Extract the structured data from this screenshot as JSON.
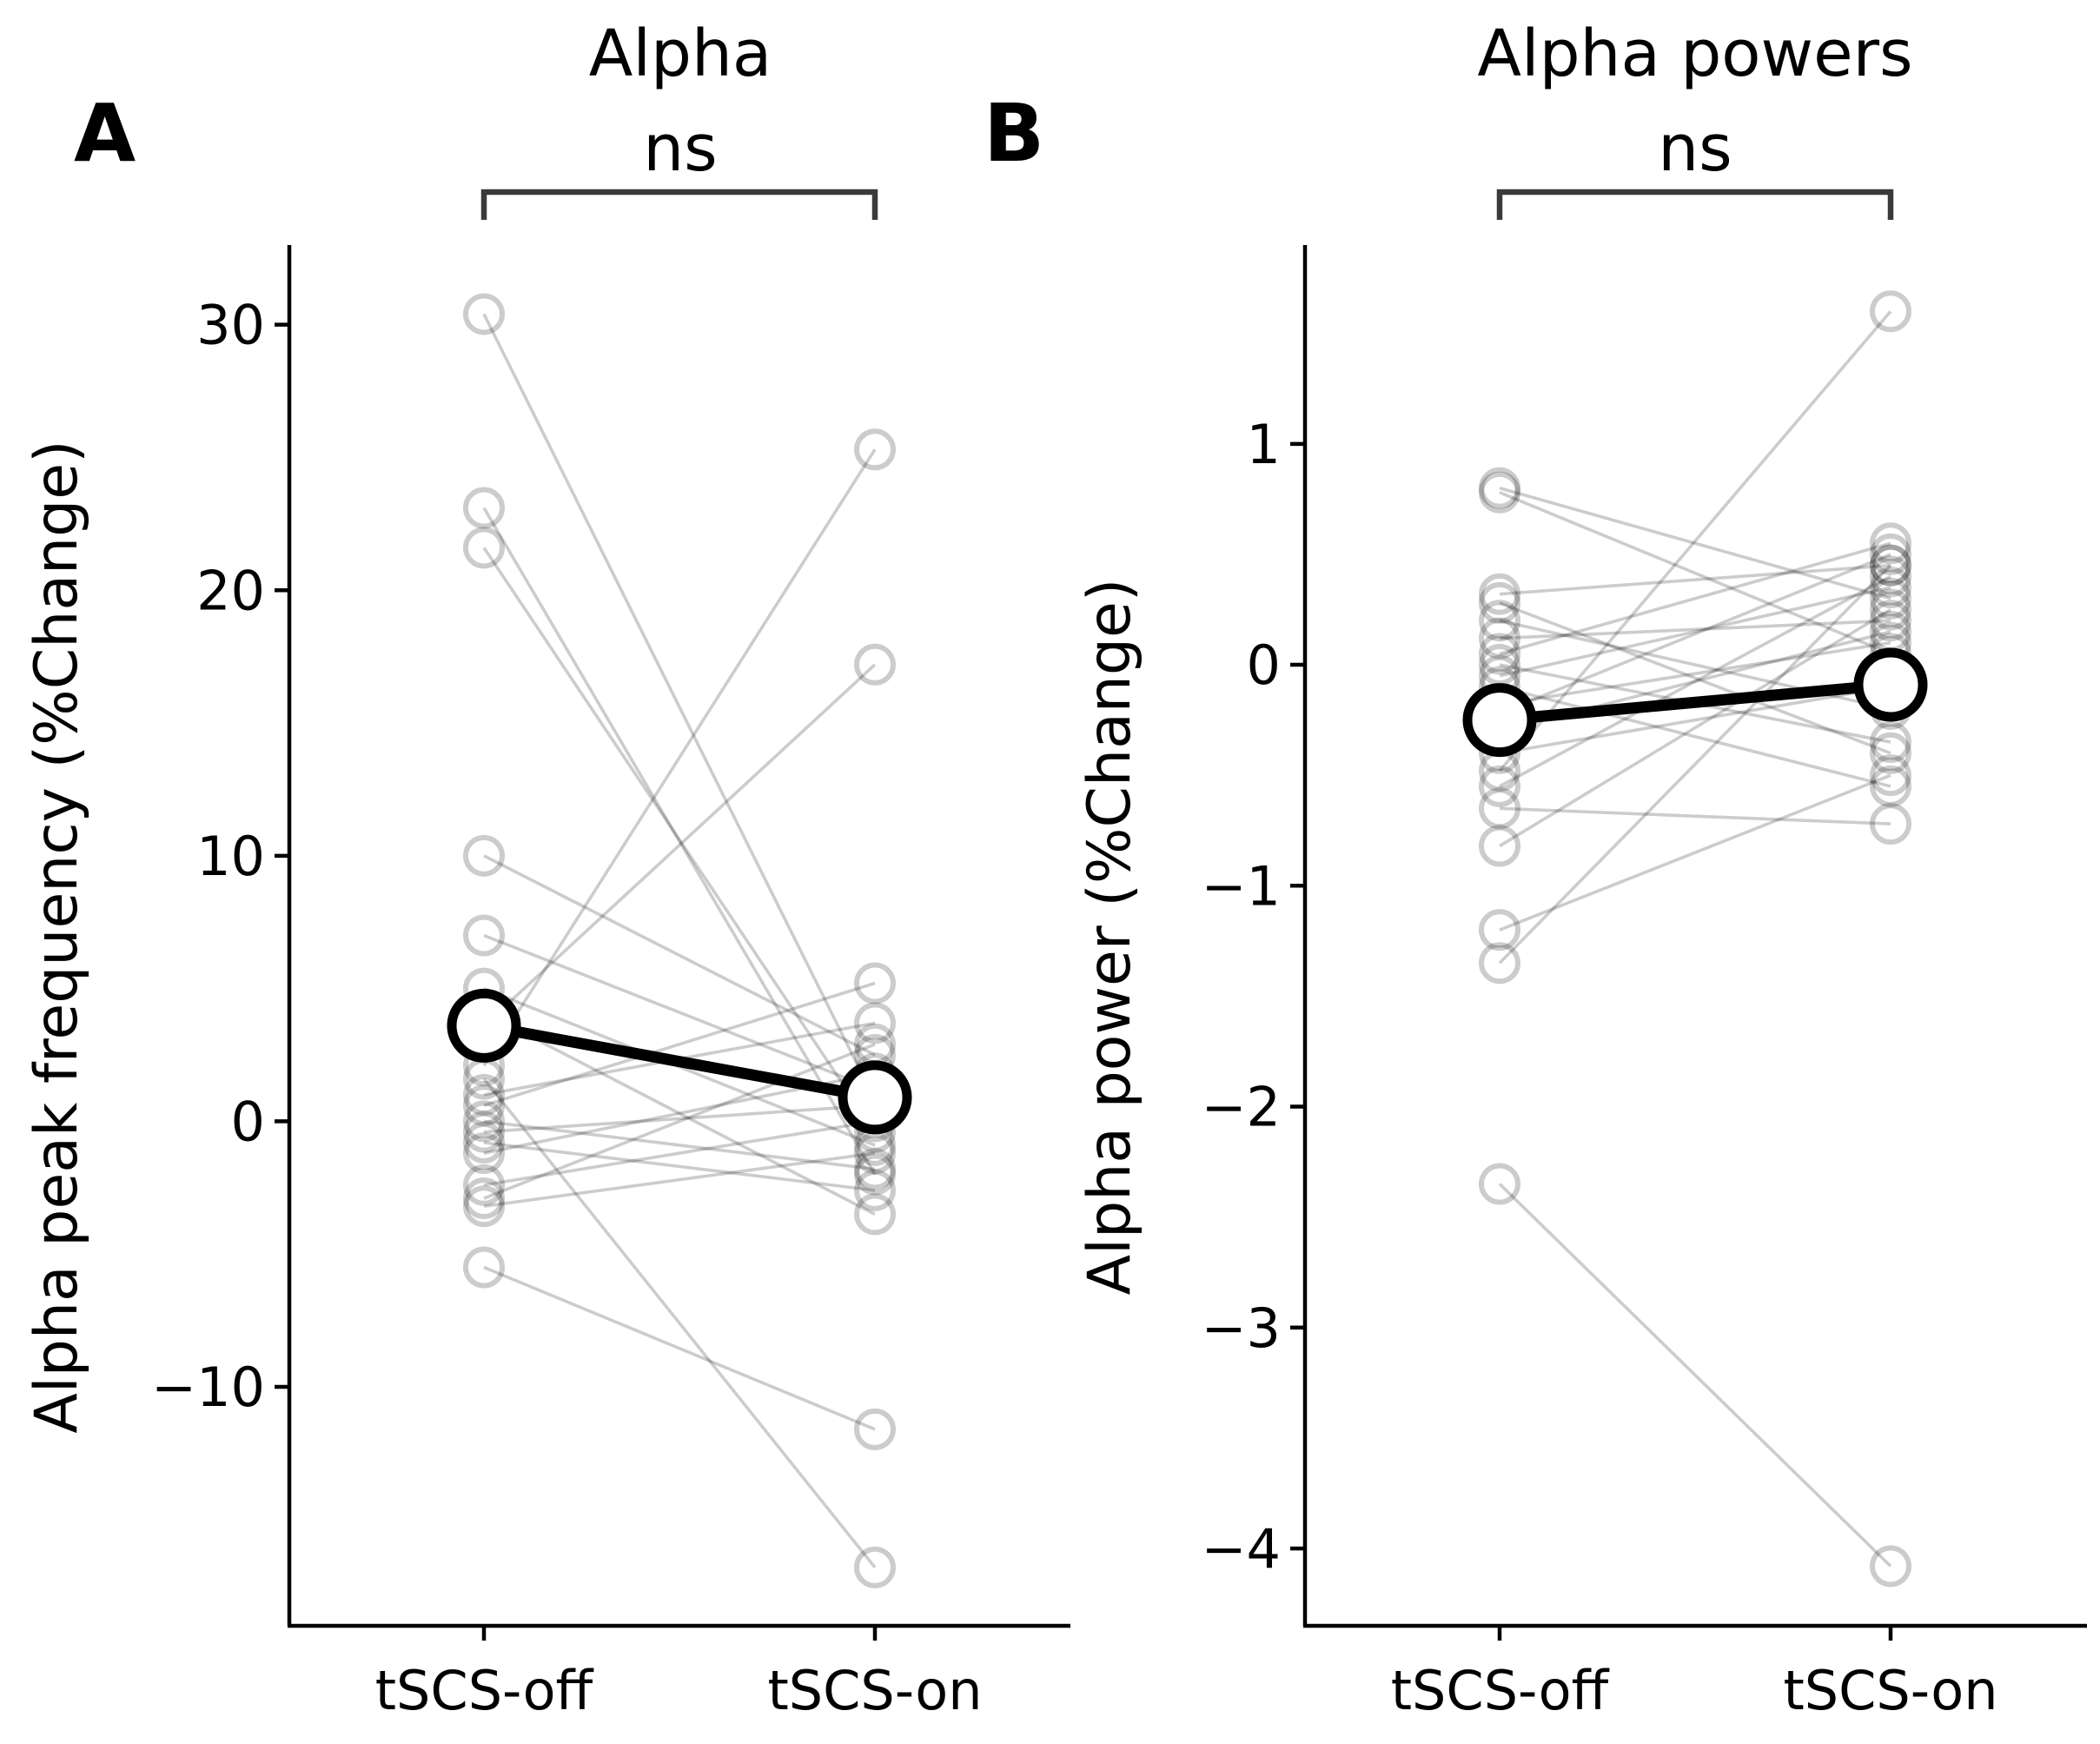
{
  "chart_data": [
    {
      "type": "paired-scatter",
      "panel_label": "A",
      "title": "Alpha",
      "significance": "ns",
      "ylabel": "Alpha peak frequency (%Change)",
      "xlabel": "",
      "categories": [
        "tSCS-off",
        "tSCS-on"
      ],
      "ylim": [
        -19,
        33
      ],
      "yticks": [
        30,
        20,
        10,
        0,
        -10
      ],
      "ytick_labels": [
        "30",
        "20",
        "10",
        "0",
        "−10"
      ],
      "grid": false,
      "pairs": [
        [
          30.4,
          0.8
        ],
        [
          23.1,
          -2.0
        ],
        [
          21.6,
          -0.4
        ],
        [
          10.0,
          2.5
        ],
        [
          7.0,
          1.2
        ],
        [
          5.0,
          -0.9
        ],
        [
          4.1,
          -3.5
        ],
        [
          3.6,
          17.2
        ],
        [
          2.1,
          25.3
        ],
        [
          1.6,
          -16.8
        ],
        [
          1.0,
          3.7
        ],
        [
          0.6,
          5.2
        ],
        [
          0.0,
          -1.8
        ],
        [
          -0.4,
          0.6
        ],
        [
          -0.8,
          -2.6
        ],
        [
          -1.2,
          1.8
        ],
        [
          -2.4,
          0.0
        ],
        [
          -2.9,
          2.9
        ],
        [
          -3.2,
          -1.2
        ],
        [
          -5.5,
          -11.6
        ]
      ],
      "mean": [
        3.6,
        0.9
      ]
    },
    {
      "type": "paired-scatter",
      "panel_label": "B",
      "title": "Alpha powers",
      "significance": "ns",
      "ylabel": "Alpha power (%Change)",
      "xlabel": "",
      "categories": [
        "tSCS-off",
        "tSCS-on"
      ],
      "ylim": [
        -4.35,
        1.9
      ],
      "yticks": [
        1,
        0,
        -1,
        -2,
        -3,
        -4
      ],
      "ytick_labels": [
        "1",
        "0",
        "−1",
        "−2",
        "−3",
        "−4"
      ],
      "grid": false,
      "pairs": [
        [
          0.8,
          0.3
        ],
        [
          0.78,
          0.05
        ],
        [
          0.32,
          0.45
        ],
        [
          0.28,
          -0.4
        ],
        [
          0.2,
          -0.2
        ],
        [
          0.12,
          0.2
        ],
        [
          0.05,
          0.55
        ],
        [
          0.0,
          -0.35
        ],
        [
          -0.05,
          0.35
        ],
        [
          -0.1,
          -0.55
        ],
        [
          -0.18,
          0.1
        ],
        [
          -0.22,
          0.5
        ],
        [
          -0.3,
          0.15
        ],
        [
          -0.4,
          -0.1
        ],
        [
          -0.48,
          1.6
        ],
        [
          -0.55,
          0.4
        ],
        [
          -0.65,
          -0.72
        ],
        [
          -0.82,
          0.25
        ],
        [
          -1.2,
          -0.5
        ],
        [
          -1.35,
          0.45
        ],
        [
          -2.35,
          -4.08
        ]
      ],
      "mean": [
        -0.25,
        -0.09
      ]
    }
  ]
}
